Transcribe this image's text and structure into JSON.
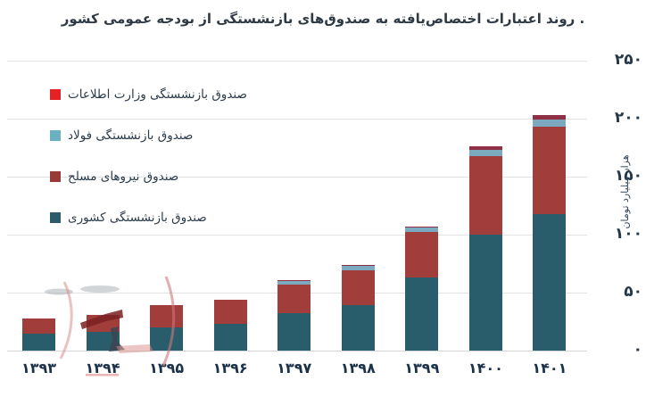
{
  "title": ". روند اعتبارات اختصاص‌یافته به صندوق‌های بازنشستگی از بودجه عمومی کشور",
  "y_axis": {
    "unit_label": "هزار میلیارد تومان",
    "tick_values": [
      0,
      50,
      100,
      150,
      200,
      250
    ],
    "tick_labels": [
      "۰",
      "۵۰",
      "۱۰۰",
      "۱۵۰",
      "۲۰۰",
      "۲۵۰"
    ]
  },
  "legend": {
    "items": [
      {
        "label": "صندوق بازنشستگی وزارت اطلاعات",
        "color": "#e32227"
      },
      {
        "label": "صندوق بازنشستگی فولاد",
        "color": "#6cb2be"
      },
      {
        "label": "صندوق نیروهای مسلح",
        "color": "#9a3a38"
      },
      {
        "label": "صندوق بازنشستگی کشوری",
        "color": "#2d5c68"
      }
    ]
  },
  "chart_data": {
    "type": "bar",
    "stacked": true,
    "title": "روند اعتبارات اختصاص‌یافته به صندوق‌های بازنشستگی از بودجه عمومی کشور",
    "xlabel": "",
    "ylabel": "هزار میلیارد تومان",
    "ylim": [
      0,
      250
    ],
    "grid": true,
    "legend_position": "upper-left",
    "categories": [
      "۱۳۹۳",
      "۱۳۹۴",
      "۱۳۹۵",
      "۱۳۹۶",
      "۱۳۹۷",
      "۱۳۹۸",
      "۱۳۹۹",
      "۱۴۰۰",
      "۱۴۰۱"
    ],
    "categories_latin": [
      1393,
      1394,
      1395,
      1396,
      1397,
      1398,
      1399,
      1400,
      1401
    ],
    "series": [
      {
        "name": "صندوق بازنشستگی کشوری",
        "color": "#2a5d6c",
        "values": [
          15,
          16,
          20,
          23,
          32,
          39,
          63,
          100,
          118
        ]
      },
      {
        "name": "صندوق نیروهای مسلح",
        "color": "#a13e3c",
        "values": [
          13,
          15,
          19,
          21,
          25,
          30,
          39,
          68,
          75
        ]
      },
      {
        "name": "صندوق بازنشستگی فولاد",
        "color": "#7aa9c0",
        "values": [
          0,
          0,
          0,
          0,
          3,
          4,
          4,
          5,
          6
        ]
      },
      {
        "name": "صندوق بازنشستگی وزارت اطلاعات",
        "color": "#8f3044",
        "values": [
          0,
          0,
          0,
          0,
          1,
          1,
          1,
          3,
          4
        ]
      }
    ],
    "totals": [
      28,
      31,
      39,
      44,
      61,
      74,
      107,
      176,
      203
    ]
  }
}
